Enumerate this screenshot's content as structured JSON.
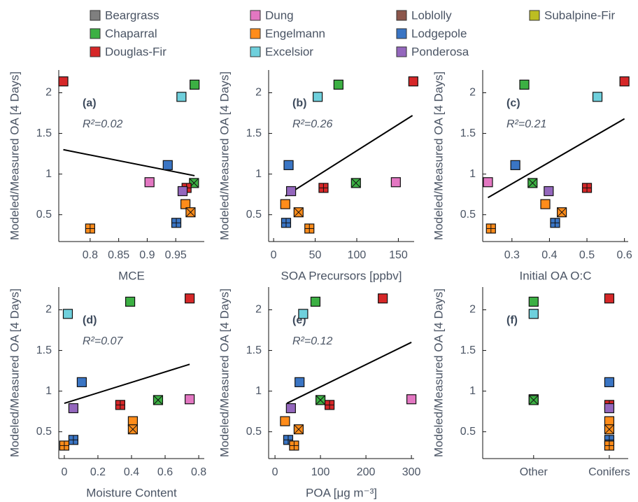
{
  "legend": [
    {
      "name": "Beargrass",
      "color": "#7f7f7f"
    },
    {
      "name": "Chaparral",
      "color": "#3cb043"
    },
    {
      "name": "Douglas-Fir",
      "color": "#d62728"
    },
    {
      "name": "Dung",
      "color": "#e377c2"
    },
    {
      "name": "Engelmann",
      "color": "#ff8c1a"
    },
    {
      "name": "Excelsior",
      "color": "#6fd0dc"
    },
    {
      "name": "Loblolly",
      "color": "#8c564b"
    },
    {
      "name": "Lodgepole",
      "color": "#3a75c4"
    },
    {
      "name": "Ponderosa",
      "color": "#9467bd"
    },
    {
      "name": "Subalpine-Fir",
      "color": "#bcbd22"
    }
  ],
  "points": [
    {
      "fuel": "Douglas-Fir",
      "marker": "square"
    },
    {
      "fuel": "Chaparral",
      "marker": "square"
    },
    {
      "fuel": "Excelsior",
      "marker": "square"
    },
    {
      "fuel": "Lodgepole",
      "marker": "square"
    },
    {
      "fuel": "Dung",
      "marker": "square"
    },
    {
      "fuel": "Chaparral",
      "marker": "square-cross"
    },
    {
      "fuel": "Douglas-Fir",
      "marker": "square-plus"
    },
    {
      "fuel": "Ponderosa",
      "marker": "square"
    },
    {
      "fuel": "Engelmann",
      "marker": "square"
    },
    {
      "fuel": "Engelmann",
      "marker": "square-cross"
    },
    {
      "fuel": "Lodgepole",
      "marker": "square-plus"
    },
    {
      "fuel": "Engelmann",
      "marker": "square-plus"
    }
  ],
  "chart_data": [
    {
      "type": "scatter",
      "panel": "(a)",
      "annotation": "R²=0.02",
      "xlabel": "MCE",
      "ylabel": "Modeled/Measured OA [4 Days]",
      "x": [
        0.753,
        0.983,
        0.96,
        0.936,
        0.904,
        0.982,
        0.969,
        0.962,
        0.967,
        0.976,
        0.951,
        0.8
      ],
      "y": [
        2.14,
        2.1,
        1.95,
        1.11,
        0.9,
        0.89,
        0.83,
        0.79,
        0.63,
        0.53,
        0.4,
        0.33
      ],
      "fit": {
        "x": [
          0.753,
          0.983
        ],
        "y": [
          1.3,
          0.98
        ]
      },
      "xlim": [
        0.745,
        1.0
      ],
      "xticks": [
        0.8,
        0.85,
        0.9,
        0.95
      ],
      "ylim": [
        0.17,
        2.28
      ],
      "yticks": [
        0.5,
        1,
        1.5,
        2
      ]
    },
    {
      "type": "scatter",
      "panel": "(b)",
      "annotation": "R²=0.26",
      "xlabel": "SOA Precursors [ppbv]",
      "ylabel": "Modeled/Measured OA [4 Days]",
      "x": [
        168,
        78,
        53,
        18,
        147,
        99,
        60,
        21,
        14,
        30,
        15,
        43
      ],
      "y": [
        2.14,
        2.1,
        1.95,
        1.11,
        0.9,
        0.89,
        0.83,
        0.79,
        0.63,
        0.53,
        0.4,
        0.33
      ],
      "fit": {
        "x": [
          14,
          167
        ],
        "y": [
          0.73,
          1.72
        ]
      },
      "xlim": [
        -6,
        169
      ],
      "xticks": [
        0,
        50,
        100,
        150
      ],
      "ylim": [
        0.17,
        2.28
      ],
      "yticks": [
        0.5,
        1,
        1.5,
        2
      ]
    },
    {
      "type": "scatter",
      "panel": "(c)",
      "annotation": "R²=0.21",
      "xlabel": "Initial OA O:C",
      "ylabel": "Modeled/Measured OA [4 Days]",
      "x": [
        0.6,
        0.333,
        0.528,
        0.309,
        0.236,
        0.355,
        0.5,
        0.398,
        0.389,
        0.433,
        0.415,
        0.244
      ],
      "y": [
        2.14,
        2.1,
        1.95,
        1.11,
        0.9,
        0.89,
        0.83,
        0.79,
        0.63,
        0.53,
        0.4,
        0.33
      ],
      "fit": {
        "x": [
          0.236,
          0.6
        ],
        "y": [
          0.71,
          1.68
        ]
      },
      "xlim": [
        0.222,
        0.61
      ],
      "xticks": [
        0.3,
        0.4,
        0.5,
        0.6
      ],
      "ylim": [
        0.17,
        2.28
      ],
      "yticks": [
        0.5,
        1,
        1.5,
        2
      ]
    },
    {
      "type": "scatter",
      "panel": "(d)",
      "annotation": "R²=0.07",
      "xlabel": "Moisture Content",
      "ylabel": "Modeled/Measured OA [4 Days]",
      "x": [
        0.746,
        0.392,
        0.021,
        0.104,
        0.746,
        0.558,
        0.333,
        0.054,
        0.408,
        0.408,
        0.054,
        0.0
      ],
      "y": [
        2.14,
        2.1,
        1.95,
        1.11,
        0.9,
        0.89,
        0.83,
        0.79,
        0.63,
        0.53,
        0.4,
        0.33
      ],
      "fit": {
        "x": [
          0.0,
          0.746
        ],
        "y": [
          0.85,
          1.33
        ]
      },
      "xlim": [
        -0.033,
        0.833
      ],
      "xticks": [
        0,
        0.2,
        0.4,
        0.6,
        0.8
      ],
      "ylim": [
        0.17,
        2.28
      ],
      "yticks": [
        0.5,
        1,
        1.5,
        2
      ]
    },
    {
      "type": "scatter",
      "panel": "(e)",
      "annotation": "R²=0.12",
      "xlabel": "POA [μg m⁻³]",
      "ylabel": "Modeled/Measured OA [4 Days]",
      "x": [
        237,
        89,
        62,
        54,
        300,
        100,
        120,
        35,
        22,
        52,
        29,
        42
      ],
      "y": [
        2.14,
        2.1,
        1.95,
        1.11,
        0.9,
        0.89,
        0.83,
        0.79,
        0.63,
        0.53,
        0.4,
        0.33
      ],
      "fit": {
        "x": [
          26,
          300
        ],
        "y": [
          0.85,
          1.6
        ]
      },
      "xlim": [
        -14,
        306
      ],
      "xticks": [
        0,
        100,
        200,
        300
      ],
      "ylim": [
        0.17,
        2.28
      ],
      "yticks": [
        0.5,
        1,
        1.5,
        2
      ]
    },
    {
      "type": "category-scatter",
      "panel": "(f)",
      "ylabel": "Modeled/Measured OA [4 Days]",
      "categories": [
        "Other",
        "Conifers"
      ],
      "x": [
        "Conifers",
        "Other",
        "Other",
        "Conifers",
        "Other",
        "Other",
        "Conifers",
        "Conifers",
        "Conifers",
        "Conifers",
        "Conifers",
        "Conifers"
      ],
      "y": [
        2.14,
        2.1,
        1.95,
        1.11,
        0.9,
        0.89,
        0.83,
        0.79,
        0.63,
        0.53,
        0.4,
        0.33
      ],
      "ylim": [
        0.17,
        2.28
      ],
      "yticks": [
        0.5,
        1,
        1.5,
        2
      ]
    }
  ]
}
